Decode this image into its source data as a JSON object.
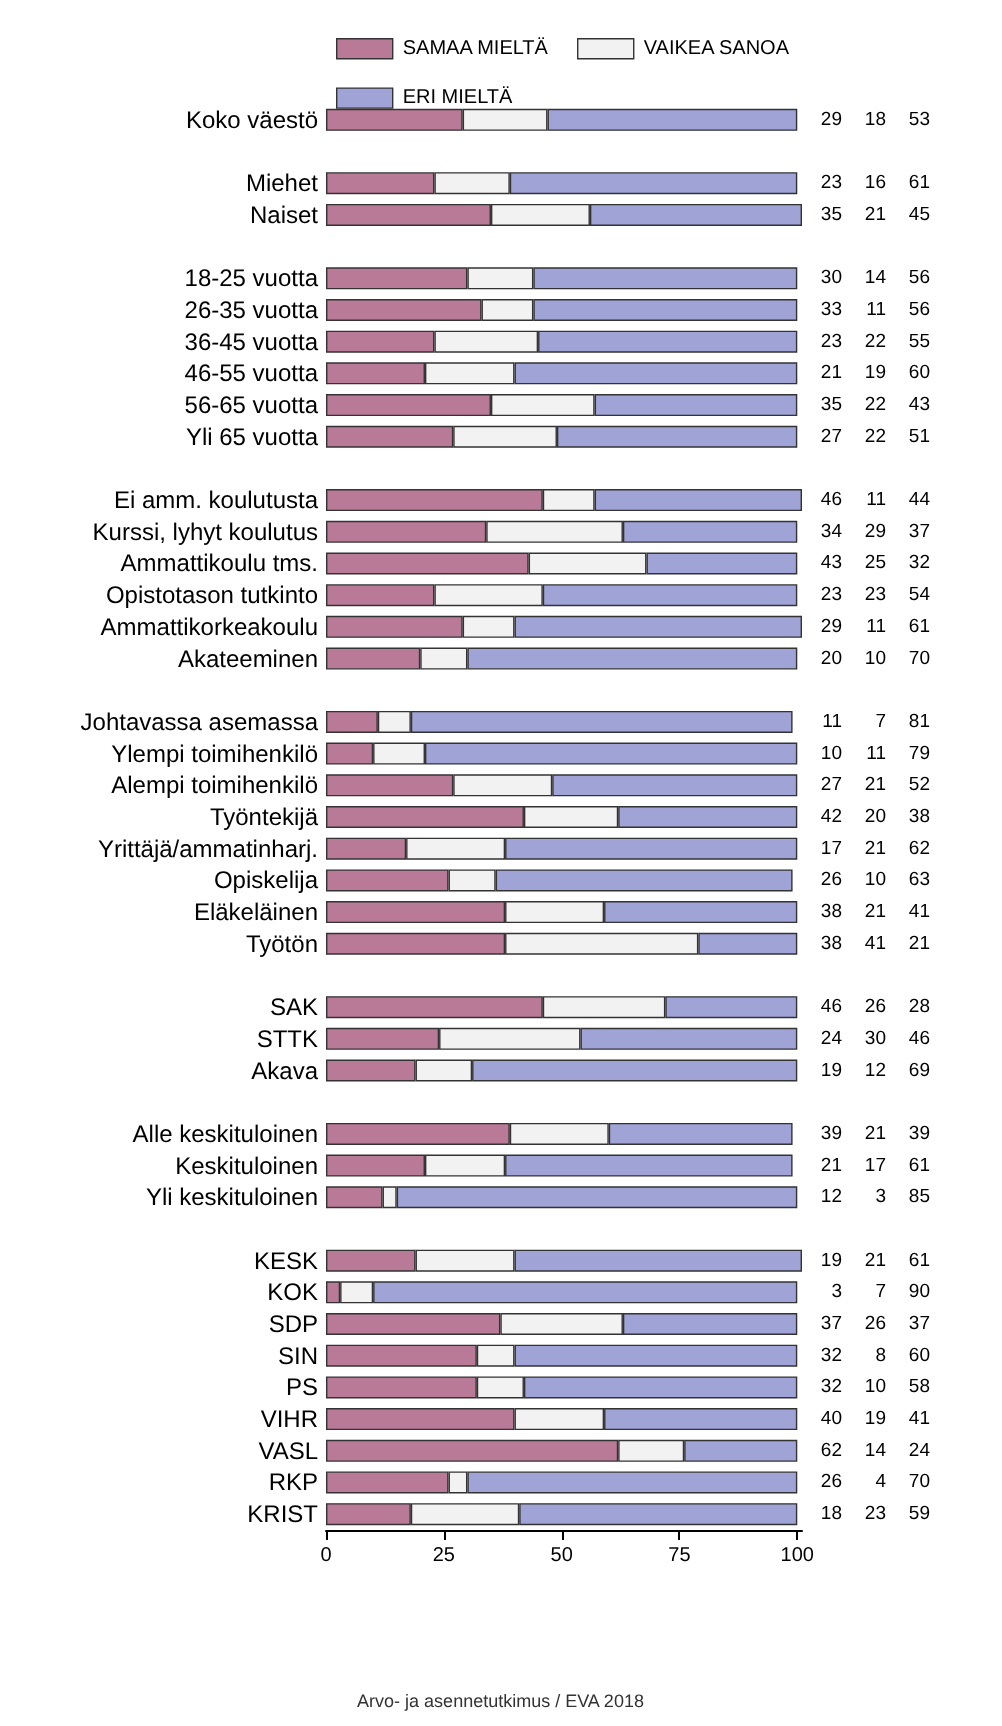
{
  "chart_data": {
    "type": "bar",
    "orientation": "horizontal",
    "stacked": true,
    "data_labels": true,
    "grid": false,
    "legend": "top",
    "categories": [
      "Koko väestö",
      null,
      "Miehet",
      "Naiset",
      null,
      "18-25 vuotta",
      "26-35 vuotta",
      "36-45 vuotta",
      "46-55 vuotta",
      "56-65 vuotta",
      "Yli 65 vuotta",
      null,
      "Ei amm. koulutusta",
      "Kurssi, lyhyt koulutus",
      "Ammattikoulu tms.",
      "Opistotason tutkinto",
      "Ammattikorkeakoulu",
      "Akateeminen",
      null,
      "Johtavassa asemassa",
      "Ylempi toimihenkilö",
      "Alempi toimihenkilö",
      "Työntekijä",
      "Yrittäjä/ammatinharj.",
      "Opiskelija",
      "Eläkeläinen",
      "Työtön",
      null,
      "SAK",
      "STTK",
      "Akava",
      null,
      "Alle keskituloinen",
      "Keskituloinen",
      "Yli keskituloinen",
      null,
      "KESK",
      "KOK",
      "SDP",
      "SIN",
      "PS",
      "VIHR",
      "VASL",
      "RKP",
      "KRIST"
    ],
    "series": [
      {
        "name": "SAMAA MIELTÄ",
        "color": "#b87a96",
        "values": [
          29,
          null,
          23,
          35,
          null,
          30,
          33,
          23,
          21,
          35,
          27,
          null,
          46,
          34,
          43,
          23,
          29,
          20,
          null,
          11,
          10,
          27,
          42,
          17,
          26,
          38,
          38,
          null,
          46,
          24,
          19,
          null,
          39,
          21,
          12,
          null,
          19,
          3,
          37,
          32,
          32,
          40,
          62,
          26,
          18
        ]
      },
      {
        "name": "VAIKEA SANOA",
        "color": "#f2f2f2",
        "values": [
          18,
          null,
          16,
          21,
          null,
          14,
          11,
          22,
          19,
          22,
          22,
          null,
          11,
          29,
          25,
          23,
          11,
          10,
          null,
          7,
          11,
          21,
          20,
          21,
          10,
          21,
          41,
          null,
          26,
          30,
          12,
          null,
          21,
          17,
          3,
          null,
          21,
          7,
          26,
          8,
          10,
          19,
          14,
          4,
          23
        ]
      },
      {
        "name": "ERI MIELTÄ",
        "color": "#9fa3d6",
        "values": [
          53,
          null,
          61,
          45,
          null,
          56,
          56,
          55,
          60,
          43,
          51,
          null,
          44,
          37,
          32,
          54,
          61,
          70,
          null,
          81,
          79,
          52,
          38,
          62,
          63,
          41,
          21,
          null,
          28,
          46,
          69,
          null,
          39,
          61,
          85,
          null,
          61,
          90,
          37,
          60,
          58,
          41,
          24,
          70,
          59
        ]
      }
    ],
    "xlim": [
      0,
      101
    ],
    "xticks": [
      0,
      25,
      50,
      75,
      100
    ],
    "annotations": [
      "Arvo- ja asennetutkimus / EVA 2018"
    ]
  }
}
